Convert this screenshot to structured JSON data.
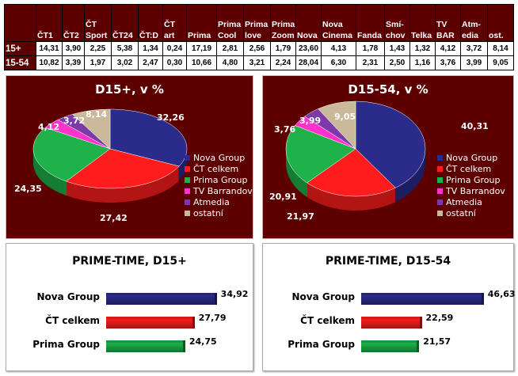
{
  "table": {
    "columns": [
      "ČT1",
      "ČT2",
      "ČT Sport",
      "ČT24",
      "ČT:D",
      "ČT art",
      "Prima",
      "Prima Cool",
      "Prima love",
      "Prima Zoom",
      "Nova",
      "Nova Cinema",
      "Fanda",
      "Smí-chov",
      "Telka",
      "TV BAR",
      "Atm-edia",
      "ost."
    ],
    "rows": [
      {
        "label": "15+",
        "values": [
          "14,31",
          "3,90",
          "2,25",
          "5,38",
          "1,34",
          "0,24",
          "17,19",
          "2,81",
          "2,56",
          "1,79",
          "23,60",
          "4,13",
          "1,78",
          "1,43",
          "1,32",
          "4,12",
          "3,72",
          "8,14"
        ]
      },
      {
        "label": "15-54",
        "values": [
          "10,82",
          "3,39",
          "1,97",
          "3,02",
          "2,47",
          "0,30",
          "10,66",
          "4,80",
          "3,21",
          "2,24",
          "28,04",
          "6,30",
          "2,31",
          "2,50",
          "1,16",
          "3,76",
          "3,99",
          "9,05"
        ]
      }
    ]
  },
  "chart_data": [
    {
      "type": "pie",
      "title": "D15+, v %",
      "categories": [
        "Nova Group",
        "ČT celkem",
        "Prima Group",
        "TV Barrandov",
        "Atmedia",
        "ostatní"
      ],
      "values": [
        32.26,
        27.42,
        24.35,
        4.12,
        3.72,
        8.14
      ],
      "labels": [
        "32,26",
        "27,42",
        "24,35",
        "4,12",
        "3,72",
        "8,14"
      ],
      "legend": "right"
    },
    {
      "type": "pie",
      "title": "D15-54, v %",
      "categories": [
        "Nova Group",
        "ČT celkem",
        "Prima Group",
        "TV Barrandov",
        "Atmedia",
        "ostatní"
      ],
      "values": [
        40.31,
        21.97,
        20.91,
        3.76,
        3.99,
        9.05
      ],
      "labels": [
        "40,31",
        "21,97",
        "20,91",
        "3,76",
        "3,99",
        "9,05"
      ],
      "legend": "right"
    },
    {
      "type": "bar",
      "orientation": "horizontal",
      "title": "PRIME-TIME, D15+",
      "categories": [
        "Nova Group",
        "ČT celkem",
        "Prima Group"
      ],
      "values": [
        34.92,
        27.79,
        24.75
      ],
      "labels": [
        "34,92",
        "27,79",
        "24,75"
      ],
      "xlim": [
        0,
        35
      ]
    },
    {
      "type": "bar",
      "orientation": "horizontal",
      "title": "PRIME-TIME, D15-54",
      "categories": [
        "Nova Group",
        "ČT celkem",
        "Prima Group"
      ],
      "values": [
        46.63,
        22.59,
        21.57
      ],
      "labels": [
        "46,63",
        "22,59",
        "21,57"
      ],
      "xlim": [
        0,
        47
      ]
    }
  ],
  "colors": [
    "#2b2b8c",
    "#ff1c1c",
    "#1fb24a",
    "#ff33cc",
    "#7b3aa8",
    "#c9b99a"
  ]
}
